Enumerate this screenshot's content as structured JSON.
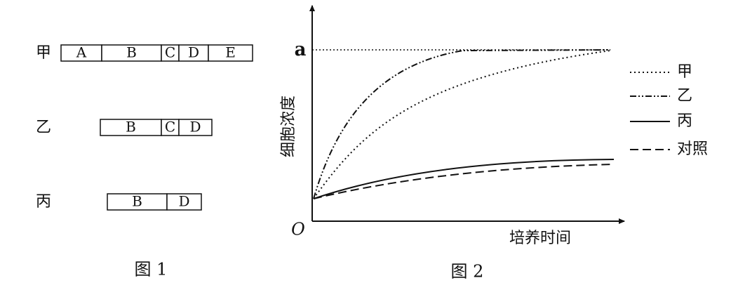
{
  "figure1": {
    "caption": "图 1",
    "rows": [
      {
        "label": "甲",
        "segments": [
          "A",
          "B",
          "C",
          "D",
          "E"
        ]
      },
      {
        "label": "乙",
        "segments": [
          "B",
          "C",
          "D"
        ]
      },
      {
        "label": "丙",
        "segments": [
          "B",
          "D"
        ]
      }
    ]
  },
  "figure2": {
    "caption": "图 2",
    "y_axis_label": "细胞浓度",
    "x_axis_label": "培养时间",
    "origin": "O",
    "y_marker": "a",
    "legend": [
      "甲",
      "乙",
      "丙",
      "对照"
    ]
  }
}
